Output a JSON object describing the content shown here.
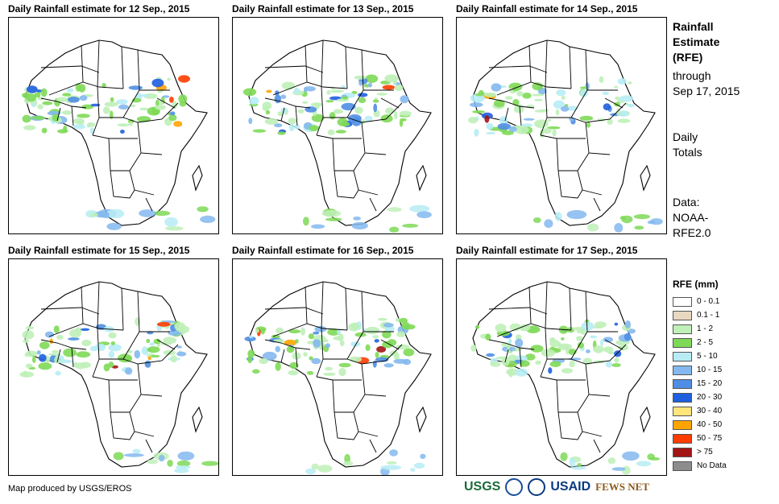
{
  "panels": [
    {
      "title": "Daily Rainfall estimate for 12 Sep., 2015"
    },
    {
      "title": "Daily Rainfall estimate for 13 Sep., 2015"
    },
    {
      "title": "Daily Rainfall estimate for 14 Sep., 2015"
    },
    {
      "title": "Daily Rainfall estimate for 15 Sep., 2015"
    },
    {
      "title": "Daily Rainfall estimate for 16 Sep., 2015"
    },
    {
      "title": "Daily Rainfall estimate for 17 Sep., 2015"
    }
  ],
  "side": {
    "title_line1": "Rainfall",
    "title_line2": "Estimate",
    "title_line3": "(RFE)",
    "through_line1": "through",
    "through_line2": "Sep 17, 2015",
    "daily_line1": "Daily",
    "daily_line2": "Totals",
    "data_line1": "Data:",
    "data_line2": "NOAA-",
    "data_line3": "RFE2.0"
  },
  "legend": {
    "title": "RFE (mm)",
    "items": [
      {
        "label": "0 - 0.1",
        "color": "#ffffff"
      },
      {
        "label": "0.1 - 1",
        "color": "#e8d8c0"
      },
      {
        "label": "1 - 2",
        "color": "#bff0b8"
      },
      {
        "label": "2 - 5",
        "color": "#7ed957"
      },
      {
        "label": "5 - 10",
        "color": "#b7ecf5"
      },
      {
        "label": "10 - 15",
        "color": "#84b8ee"
      },
      {
        "label": "15 - 20",
        "color": "#4f8ee3"
      },
      {
        "label": "20 - 30",
        "color": "#1e5fe0"
      },
      {
        "label": "30 - 40",
        "color": "#ffe57a"
      },
      {
        "label": "40 - 50",
        "color": "#ffa400"
      },
      {
        "label": "50 - 75",
        "color": "#ff3c00"
      },
      {
        "label": "> 75",
        "color": "#a31414"
      },
      {
        "label": "No Data",
        "color": "#8c8c8c"
      }
    ]
  },
  "footer": {
    "credit": "Map produced by USGS/EROS"
  },
  "logos": {
    "usgs": "USGS",
    "usaid": "USAID",
    "fews": "FEWS NET"
  }
}
